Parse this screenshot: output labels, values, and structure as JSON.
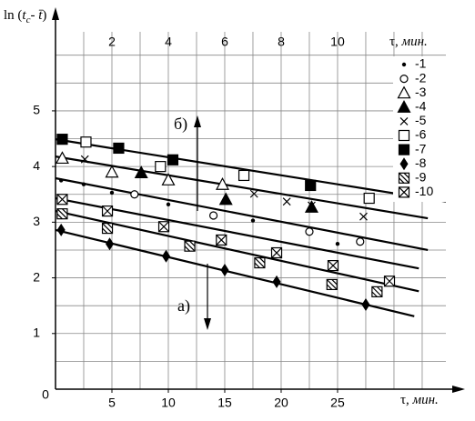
{
  "chart_data": {
    "type": "scatter",
    "ylabel_parts": [
      "ln (",
      "t",
      "c",
      "- ",
      "t̄",
      ")"
    ],
    "xlabel_parts": [
      "τ, ",
      "мин."
    ],
    "x2label_parts": [
      "τ, ",
      "мин."
    ],
    "origin_label": "0",
    "xlim": [
      0,
      34.6
    ],
    "ylim": [
      0,
      6.42
    ],
    "x2lim": [
      0,
      13.84
    ],
    "xticks": [
      5,
      10,
      15,
      20,
      25
    ],
    "yticks": [
      1,
      2,
      3,
      4,
      5
    ],
    "x2ticks": [
      2,
      4,
      6,
      8,
      10
    ],
    "x2grid": [
      1,
      2,
      3,
      4,
      5,
      6,
      7,
      8,
      9,
      10,
      11,
      12,
      13
    ],
    "ygrid": [
      0.5,
      1,
      1.5,
      2,
      2.5,
      3,
      3.5,
      4,
      4.5,
      5,
      5.5,
      6
    ],
    "grid": true,
    "legend": "upper right",
    "series": [
      {
        "name": "-1",
        "marker": "dot",
        "color": "#000",
        "x": [
          0.5,
          2.5,
          5,
          10,
          17.5,
          25
        ],
        "values": [
          3.75,
          3.68,
          3.53,
          3.32,
          3.03,
          2.61
        ]
      },
      {
        "name": "-2",
        "marker": "circle",
        "color": "#000",
        "x": [
          7,
          14,
          22.5,
          27
        ],
        "values": [
          3.5,
          3.12,
          2.83,
          2.65
        ]
      },
      {
        "name": "-3",
        "marker": "triangle",
        "color": "#000",
        "x": [
          0.6,
          5,
          10,
          14.8
        ],
        "values": [
          4.15,
          3.9,
          3.76,
          3.68
        ]
      },
      {
        "name": "-4",
        "marker": "triangle-filled",
        "color": "#000",
        "x": [
          7.6,
          15.1,
          22.7
        ],
        "values": [
          3.89,
          3.41,
          3.27
        ]
      },
      {
        "name": "-5",
        "marker": "x",
        "color": "#000",
        "x": [
          2.6,
          17.6,
          20.5,
          22.7,
          27.3
        ],
        "values": [
          4.13,
          3.51,
          3.37,
          3.3,
          3.1
        ]
      },
      {
        "name": "-6",
        "marker": "square",
        "color": "#000",
        "x": [
          2.7,
          9.3,
          16.7,
          27.8
        ],
        "values": [
          4.44,
          4.0,
          3.84,
          3.43
        ]
      },
      {
        "name": "-7",
        "marker": "square-filled",
        "color": "#000",
        "x": [
          0.6,
          5.6,
          10.4,
          22.6
        ],
        "values": [
          4.49,
          4.33,
          4.12,
          3.66
        ]
      },
      {
        "name": "-8",
        "marker": "diamond",
        "color": "#000",
        "x": [
          0.5,
          4.8,
          9.8,
          15,
          19.6,
          27.5
        ],
        "values": [
          2.86,
          2.61,
          2.39,
          2.14,
          1.93,
          1.52
        ]
      },
      {
        "name": "-9",
        "marker": "square-diag",
        "color": "#000",
        "x": [
          0.6,
          4.6,
          11.9,
          18.1,
          24.5,
          28.5
        ],
        "values": [
          3.15,
          2.89,
          2.57,
          2.27,
          1.88,
          1.75
        ]
      },
      {
        "name": "-10",
        "marker": "square-x",
        "color": "#000",
        "x": [
          0.6,
          4.6,
          9.6,
          14.7,
          19.6,
          24.6,
          29.6
        ],
        "values": [
          3.41,
          3.2,
          2.92,
          2.68,
          2.45,
          2.22,
          1.94
        ]
      }
    ],
    "fit_lines": [
      {
        "x": [
          0,
          34.6
        ],
        "y": [
          4.49,
          3.37
        ]
      },
      {
        "x": [
          0,
          33
        ],
        "y": [
          4.18,
          3.07
        ]
      },
      {
        "x": [
          0,
          33
        ],
        "y": [
          3.79,
          2.5
        ]
      },
      {
        "x": [
          0,
          32.2
        ],
        "y": [
          3.43,
          2.17
        ]
      },
      {
        "x": [
          0,
          32.2
        ],
        "y": [
          3.2,
          1.76
        ]
      },
      {
        "x": [
          0,
          31.8
        ],
        "y": [
          2.86,
          1.31
        ]
      }
    ],
    "annotations": [
      "б)",
      "а)"
    ]
  }
}
